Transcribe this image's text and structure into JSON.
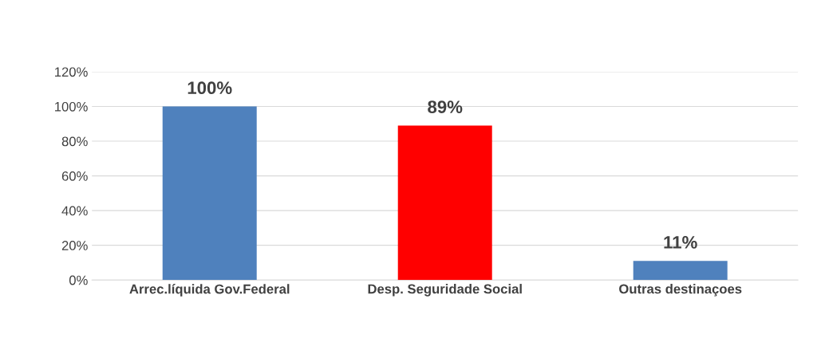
{
  "chart_data": {
    "type": "bar",
    "categories": [
      "Arrec.líquida Gov.Federal",
      "Desp. Seguridade Social",
      "Outras destinaçoes"
    ],
    "values": [
      100,
      89,
      11
    ],
    "colors": [
      "#4f81bd",
      "#ff0000",
      "#4f81bd"
    ],
    "value_labels": [
      "100%",
      "89%",
      "11%"
    ],
    "ylim": [
      0,
      120
    ],
    "yticks": [
      {
        "value": 0,
        "label": "0%"
      },
      {
        "value": 20,
        "label": "20%"
      },
      {
        "value": 40,
        "label": "40%"
      },
      {
        "value": 60,
        "label": "60%"
      },
      {
        "value": 80,
        "label": "80%"
      },
      {
        "value": 100,
        "label": "100%"
      },
      {
        "value": 120,
        "label": "120%"
      }
    ],
    "grid": "y"
  }
}
